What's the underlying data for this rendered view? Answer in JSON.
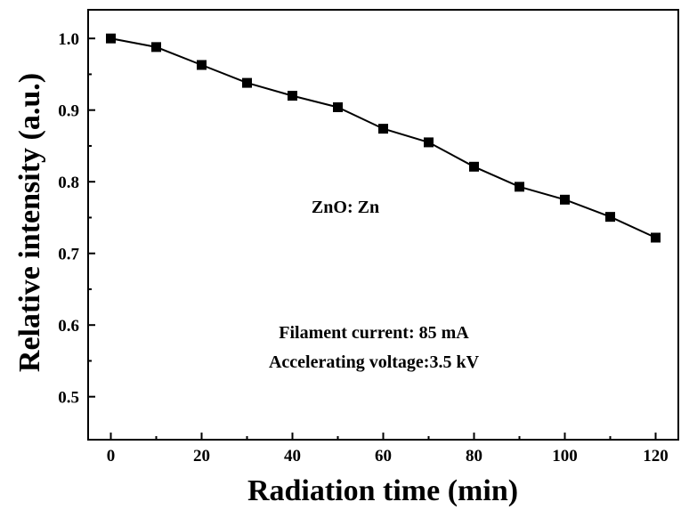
{
  "chart_data": {
    "type": "line",
    "xlabel": "Radiation time (min)",
    "ylabel": "Relative intensity (a.u.)",
    "xlim": [
      -5,
      125
    ],
    "ylim": [
      0.44,
      1.04
    ],
    "xticks": [
      0,
      20,
      40,
      60,
      80,
      100,
      120
    ],
    "yticks": [
      0.5,
      0.6,
      0.7,
      0.8,
      0.9,
      1.0
    ],
    "xtick_labels": [
      "0",
      "20",
      "40",
      "60",
      "80",
      "100",
      "120"
    ],
    "ytick_labels": [
      "0.5",
      "0.6",
      "0.7",
      "0.8",
      "0.9",
      "1.0"
    ],
    "grid": false,
    "line_color": "#000000",
    "marker": "square",
    "series": [
      {
        "x": [
          0,
          10,
          20,
          30,
          40,
          50,
          60,
          70,
          80,
          90,
          100,
          110,
          120
        ],
        "y": [
          1.0,
          0.988,
          0.963,
          0.938,
          0.92,
          0.904,
          0.874,
          0.855,
          0.821,
          0.793,
          0.775,
          0.751,
          0.722
        ]
      }
    ],
    "annotations": {
      "sample": "ZnO: Zn",
      "filament": "Filament current: 85 mA",
      "voltage": "Accelerating voltage:3.5 kV"
    }
  }
}
